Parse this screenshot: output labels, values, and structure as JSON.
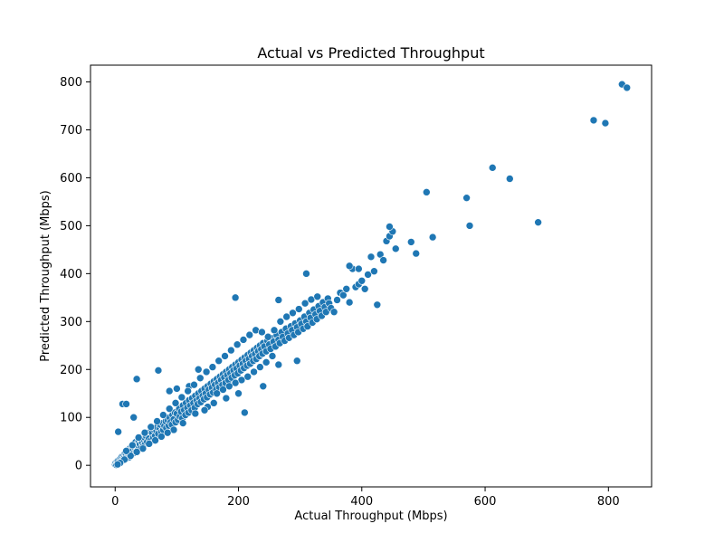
{
  "chart_data": {
    "type": "scatter",
    "title": "Actual vs Predicted Throughput",
    "xlabel": "Actual Throughput (Mbps)",
    "ylabel": "Predicted Throughput (Mbps)",
    "xlim": [
      -40,
      870
    ],
    "ylim": [
      -45,
      835
    ],
    "xticks": [
      0,
      200,
      400,
      600,
      800
    ],
    "yticks": [
      0,
      100,
      200,
      300,
      400,
      500,
      600,
      700,
      800
    ],
    "grid": false,
    "legend": "none",
    "marker_color": "#1f77b4",
    "marker_edge": "#ffffff",
    "points": [
      [
        0,
        2
      ],
      [
        1,
        5
      ],
      [
        2,
        1
      ],
      [
        3,
        8
      ],
      [
        4,
        4
      ],
      [
        5,
        10
      ],
      [
        6,
        3
      ],
      [
        7,
        12
      ],
      [
        8,
        6
      ],
      [
        9,
        15
      ],
      [
        10,
        9
      ],
      [
        11,
        18
      ],
      [
        12,
        14
      ],
      [
        13,
        11
      ],
      [
        14,
        20
      ],
      [
        15,
        16
      ],
      [
        16,
        25
      ],
      [
        17,
        13
      ],
      [
        18,
        22
      ],
      [
        19,
        28
      ],
      [
        20,
        19
      ],
      [
        21,
        30
      ],
      [
        22,
        24
      ],
      [
        23,
        17
      ],
      [
        24,
        35
      ],
      [
        25,
        27
      ],
      [
        26,
        33
      ],
      [
        27,
        22
      ],
      [
        28,
        38
      ],
      [
        29,
        31
      ],
      [
        30,
        42
      ],
      [
        31,
        26
      ],
      [
        32,
        36
      ],
      [
        33,
        48
      ],
      [
        34,
        29
      ],
      [
        35,
        40
      ],
      [
        36,
        45
      ],
      [
        37,
        33
      ],
      [
        38,
        52
      ],
      [
        39,
        38
      ],
      [
        40,
        44
      ],
      [
        41,
        55
      ],
      [
        42,
        36
      ],
      [
        43,
        50
      ],
      [
        44,
        47
      ],
      [
        45,
        60
      ],
      [
        46,
        41
      ],
      [
        47,
        53
      ],
      [
        48,
        58
      ],
      [
        49,
        45
      ],
      [
        50,
        62
      ],
      [
        52,
        49
      ],
      [
        54,
        65
      ],
      [
        55,
        56
      ],
      [
        57,
        70
      ],
      [
        58,
        52
      ],
      [
        60,
        68
      ],
      [
        62,
        58
      ],
      [
        63,
        75
      ],
      [
        65,
        62
      ],
      [
        67,
        72
      ],
      [
        68,
        80
      ],
      [
        70,
        66
      ],
      [
        72,
        78
      ],
      [
        73,
        85
      ],
      [
        75,
        70
      ],
      [
        77,
        88
      ],
      [
        78,
        74
      ],
      [
        80,
        82
      ],
      [
        82,
        92
      ],
      [
        83,
        78
      ],
      [
        85,
        95
      ],
      [
        87,
        83
      ],
      [
        88,
        100
      ],
      [
        90,
        90
      ],
      [
        92,
        85
      ],
      [
        93,
        105
      ],
      [
        95,
        96
      ],
      [
        97,
        110
      ],
      [
        98,
        90
      ],
      [
        100,
        108
      ],
      [
        102,
        95
      ],
      [
        104,
        118
      ],
      [
        105,
        102
      ],
      [
        107,
        112
      ],
      [
        109,
        98
      ],
      [
        110,
        125
      ],
      [
        112,
        115
      ],
      [
        114,
        105
      ],
      [
        115,
        130
      ],
      [
        117,
        120
      ],
      [
        119,
        110
      ],
      [
        120,
        136
      ],
      [
        122,
        125
      ],
      [
        124,
        115
      ],
      [
        125,
        140
      ],
      [
        127,
        130
      ],
      [
        129,
        120
      ],
      [
        130,
        145
      ],
      [
        132,
        135
      ],
      [
        134,
        128
      ],
      [
        135,
        150
      ],
      [
        137,
        140
      ],
      [
        139,
        132
      ],
      [
        140,
        155
      ],
      [
        142,
        145
      ],
      [
        144,
        138
      ],
      [
        145,
        160
      ],
      [
        147,
        150
      ],
      [
        149,
        142
      ],
      [
        150,
        165
      ],
      [
        152,
        158
      ],
      [
        154,
        148
      ],
      [
        155,
        170
      ],
      [
        157,
        162
      ],
      [
        159,
        152
      ],
      [
        160,
        175
      ],
      [
        162,
        168
      ],
      [
        164,
        158
      ],
      [
        165,
        180
      ],
      [
        167,
        172
      ],
      [
        169,
        163
      ],
      [
        170,
        185
      ],
      [
        172,
        178
      ],
      [
        174,
        168
      ],
      [
        175,
        190
      ],
      [
        177,
        183
      ],
      [
        179,
        172
      ],
      [
        180,
        195
      ],
      [
        182,
        188
      ],
      [
        184,
        178
      ],
      [
        185,
        200
      ],
      [
        187,
        192
      ],
      [
        189,
        183
      ],
      [
        190,
        205
      ],
      [
        192,
        198
      ],
      [
        194,
        188
      ],
      [
        195,
        210
      ],
      [
        197,
        202
      ],
      [
        199,
        192
      ],
      [
        200,
        215
      ],
      [
        202,
        208
      ],
      [
        204,
        198
      ],
      [
        205,
        220
      ],
      [
        207,
        212
      ],
      [
        209,
        203
      ],
      [
        210,
        225
      ],
      [
        212,
        218
      ],
      [
        214,
        208
      ],
      [
        215,
        230
      ],
      [
        217,
        222
      ],
      [
        219,
        212
      ],
      [
        220,
        235
      ],
      [
        222,
        228
      ],
      [
        224,
        218
      ],
      [
        225,
        240
      ],
      [
        227,
        232
      ],
      [
        229,
        222
      ],
      [
        230,
        245
      ],
      [
        232,
        238
      ],
      [
        234,
        228
      ],
      [
        235,
        250
      ],
      [
        237,
        242
      ],
      [
        239,
        233
      ],
      [
        240,
        255
      ],
      [
        242,
        248
      ],
      [
        245,
        238
      ],
      [
        247,
        260
      ],
      [
        250,
        252
      ],
      [
        252,
        243
      ],
      [
        255,
        265
      ],
      [
        257,
        258
      ],
      [
        260,
        248
      ],
      [
        262,
        272
      ],
      [
        265,
        262
      ],
      [
        267,
        255
      ],
      [
        270,
        278
      ],
      [
        272,
        268
      ],
      [
        275,
        260
      ],
      [
        277,
        285
      ],
      [
        280,
        275
      ],
      [
        282,
        266
      ],
      [
        285,
        290
      ],
      [
        287,
        282
      ],
      [
        290,
        272
      ],
      [
        292,
        296
      ],
      [
        295,
        288
      ],
      [
        297,
        278
      ],
      [
        300,
        302
      ],
      [
        302,
        295
      ],
      [
        305,
        285
      ],
      [
        307,
        310
      ],
      [
        310,
        300
      ],
      [
        312,
        290
      ],
      [
        315,
        318
      ],
      [
        317,
        308
      ],
      [
        320,
        298
      ],
      [
        322,
        325
      ],
      [
        325,
        315
      ],
      [
        327,
        305
      ],
      [
        330,
        332
      ],
      [
        332,
        322
      ],
      [
        335,
        312
      ],
      [
        337,
        340
      ],
      [
        340,
        330
      ],
      [
        342,
        320
      ],
      [
        345,
        348
      ],
      [
        347,
        338
      ],
      [
        350,
        328
      ],
      [
        355,
        320
      ],
      [
        360,
        345
      ],
      [
        365,
        360
      ],
      [
        370,
        355
      ],
      [
        375,
        368
      ],
      [
        380,
        340
      ],
      [
        385,
        410
      ],
      [
        390,
        372
      ],
      [
        395,
        378
      ],
      [
        400,
        385
      ],
      [
        405,
        368
      ],
      [
        410,
        398
      ],
      [
        415,
        435
      ],
      [
        420,
        405
      ],
      [
        425,
        335
      ],
      [
        430,
        440
      ],
      [
        435,
        428
      ],
      [
        440,
        468
      ],
      [
        445,
        478
      ],
      [
        450,
        488
      ],
      [
        455,
        452
      ],
      [
        30,
        100
      ],
      [
        35,
        180
      ],
      [
        12,
        128
      ],
      [
        18,
        128
      ],
      [
        5,
        70
      ],
      [
        70,
        198
      ],
      [
        88,
        155
      ],
      [
        100,
        160
      ],
      [
        120,
        165
      ],
      [
        135,
        200
      ],
      [
        195,
        350
      ],
      [
        265,
        345
      ],
      [
        310,
        400
      ],
      [
        380,
        416
      ],
      [
        395,
        410
      ],
      [
        445,
        498
      ],
      [
        210,
        110
      ],
      [
        180,
        140
      ],
      [
        240,
        165
      ],
      [
        265,
        210
      ],
      [
        295,
        218
      ],
      [
        200,
        150
      ],
      [
        160,
        130
      ],
      [
        150,
        122
      ],
      [
        145,
        115
      ],
      [
        130,
        108
      ],
      [
        110,
        88
      ],
      [
        95,
        74
      ],
      [
        85,
        68
      ],
      [
        75,
        60
      ],
      [
        65,
        52
      ],
      [
        55,
        45
      ],
      [
        45,
        35
      ],
      [
        35,
        28
      ],
      [
        25,
        20
      ],
      [
        15,
        12
      ],
      [
        8,
        5
      ],
      [
        4,
        2
      ],
      [
        18,
        30
      ],
      [
        28,
        42
      ],
      [
        38,
        58
      ],
      [
        48,
        68
      ],
      [
        58,
        80
      ],
      [
        68,
        92
      ],
      [
        78,
        105
      ],
      [
        88,
        118
      ],
      [
        98,
        130
      ],
      [
        108,
        142
      ],
      [
        118,
        155
      ],
      [
        128,
        168
      ],
      [
        138,
        182
      ],
      [
        148,
        195
      ],
      [
        158,
        205
      ],
      [
        168,
        218
      ],
      [
        178,
        228
      ],
      [
        188,
        240
      ],
      [
        198,
        252
      ],
      [
        208,
        262
      ],
      [
        218,
        272
      ],
      [
        228,
        282
      ],
      [
        238,
        278
      ],
      [
        248,
        268
      ],
      [
        258,
        282
      ],
      [
        268,
        300
      ],
      [
        278,
        310
      ],
      [
        288,
        318
      ],
      [
        298,
        326
      ],
      [
        308,
        338
      ],
      [
        318,
        346
      ],
      [
        328,
        352
      ],
      [
        245,
        215
      ],
      [
        255,
        228
      ],
      [
        235,
        205
      ],
      [
        225,
        195
      ],
      [
        215,
        185
      ],
      [
        205,
        178
      ],
      [
        195,
        172
      ],
      [
        185,
        165
      ],
      [
        175,
        158
      ],
      [
        165,
        150
      ],
      [
        480,
        466
      ],
      [
        488,
        442
      ],
      [
        505,
        570
      ],
      [
        515,
        476
      ],
      [
        570,
        558
      ],
      [
        575,
        500
      ],
      [
        612,
        621
      ],
      [
        640,
        598
      ],
      [
        686,
        507
      ],
      [
        776,
        720
      ],
      [
        795,
        714
      ],
      [
        822,
        795
      ],
      [
        830,
        788
      ]
    ]
  }
}
